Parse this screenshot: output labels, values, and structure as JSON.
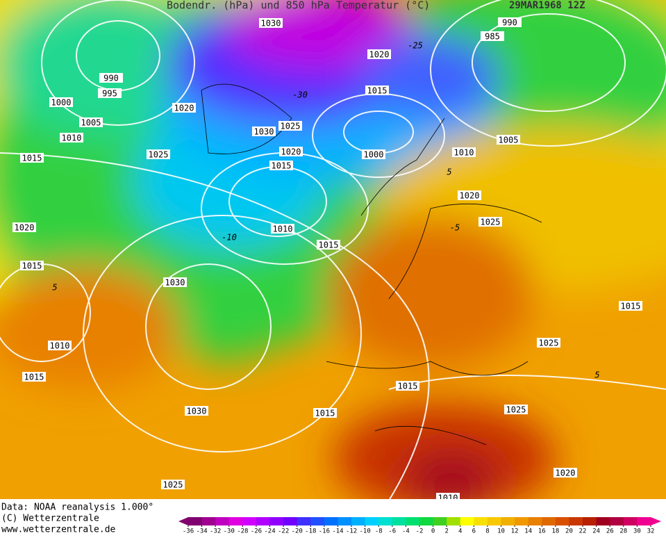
{
  "header": {
    "title": "Bodendr. (hPa) und 850 hPa Temperatur (°C)",
    "date": "29MAR1968 12Z"
  },
  "isobar_labels": [
    "1030",
    "990",
    "985",
    "1020",
    "990",
    "995",
    "1000",
    "1020",
    "1015",
    "1005",
    "1030",
    "1025",
    "1010",
    "1020",
    "1000",
    "1005",
    "1010",
    "1015",
    "1025",
    "1015",
    "1020",
    "1025",
    "1010",
    "1015",
    "1020",
    "1015",
    "1030",
    "1015",
    "1010",
    "1025",
    "1015",
    "1015",
    "1025",
    "1030",
    "1015",
    "1020",
    "1025",
    "1010"
  ],
  "temperature_labels": [
    "-10",
    "-5",
    "5",
    "-25",
    "-30",
    "5",
    "5"
  ],
  "footer": {
    "source": "Data: NOAA reanalysis 1.000°",
    "copyright": "(C) Wetterzentrale",
    "url": "www.wetterzentrale.de"
  },
  "colorbar": {
    "ticks": [
      -36,
      -34,
      -32,
      -30,
      -28,
      -26,
      -24,
      -22,
      -20,
      -18,
      -16,
      -14,
      -12,
      -10,
      -8,
      -6,
      -4,
      -2,
      0,
      2,
      4,
      6,
      8,
      10,
      12,
      14,
      16,
      18,
      20,
      22,
      24,
      26,
      28,
      30,
      32
    ],
    "colors": [
      "#800070",
      "#a00090",
      "#c000c0",
      "#e000e0",
      "#d000ff",
      "#b000ff",
      "#9000ff",
      "#7000ff",
      "#4030ff",
      "#2050ff",
      "#0070ff",
      "#0090ff",
      "#00b0ff",
      "#00d0ff",
      "#00e0d0",
      "#00e0a0",
      "#00e070",
      "#10d840",
      "#40d020",
      "#a0e000",
      "#ffff00",
      "#f8e000",
      "#f8c800",
      "#f0b000",
      "#f09800",
      "#e88000",
      "#e06800",
      "#d85000",
      "#c83800",
      "#b82000",
      "#a00020",
      "#b00040",
      "#d00060",
      "#f00090"
    ]
  }
}
